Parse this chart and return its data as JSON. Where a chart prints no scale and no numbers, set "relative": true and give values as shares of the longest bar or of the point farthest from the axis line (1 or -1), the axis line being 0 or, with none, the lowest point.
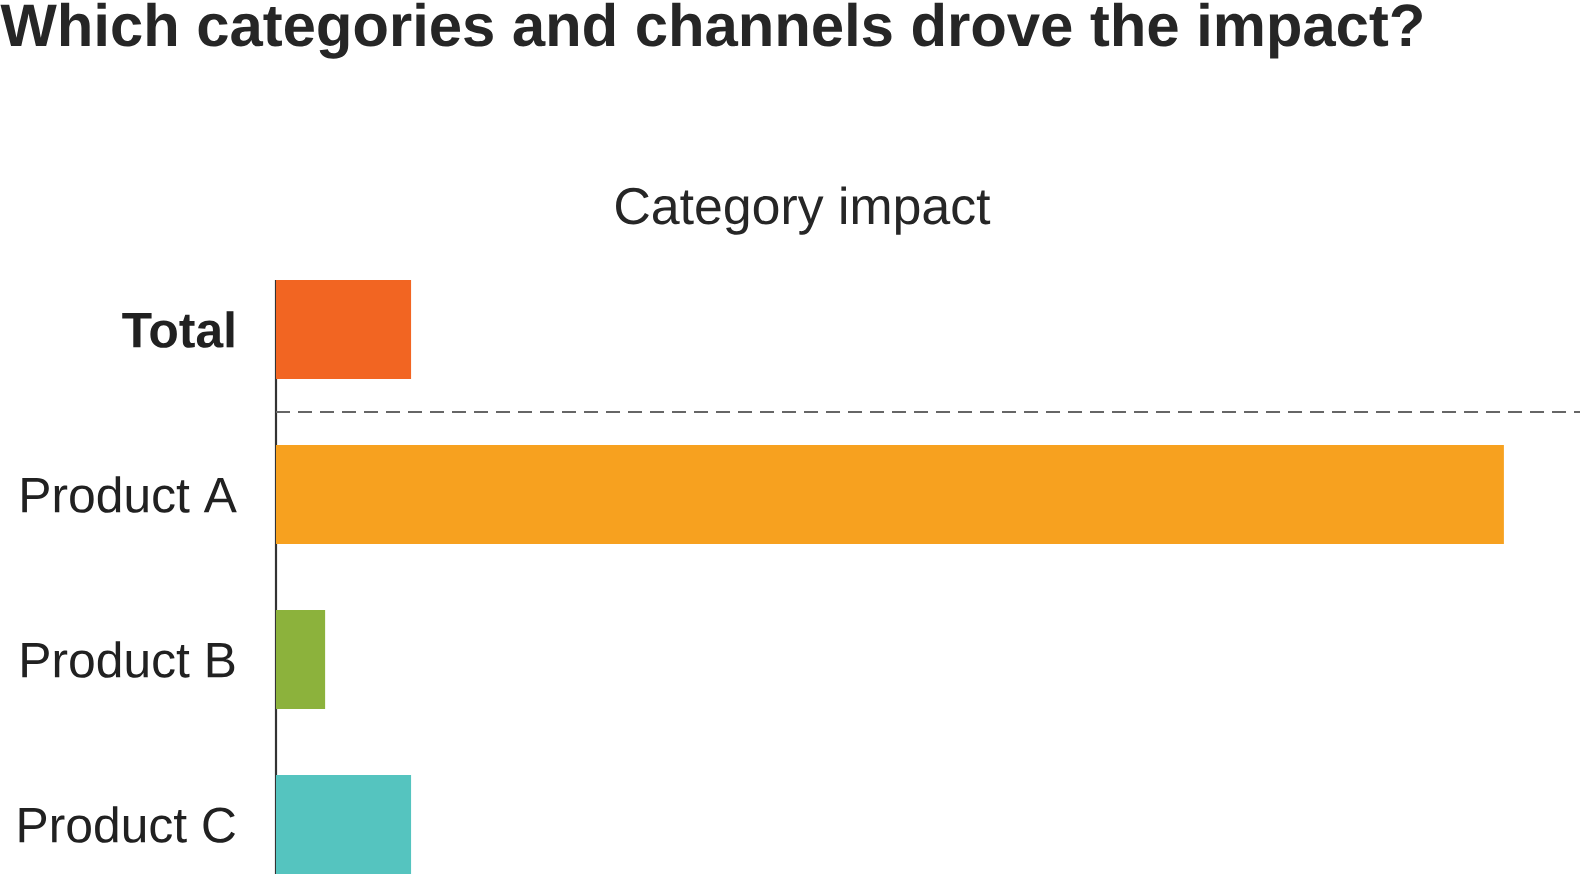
{
  "chart_data": {
    "type": "bar",
    "title": "Which categories and channels drove the impact?",
    "subtitle": "Category impact",
    "orientation": "horizontal",
    "relative": true,
    "categories": [
      "**Total**",
      "Product A",
      "Product B",
      "Product C"
    ],
    "values": [
      0.11,
      1,
      0.04,
      0.11
    ],
    "colors": [
      "#f26522",
      "#f7a11f",
      "#8cb23c",
      "#55c4bf"
    ]
  }
}
